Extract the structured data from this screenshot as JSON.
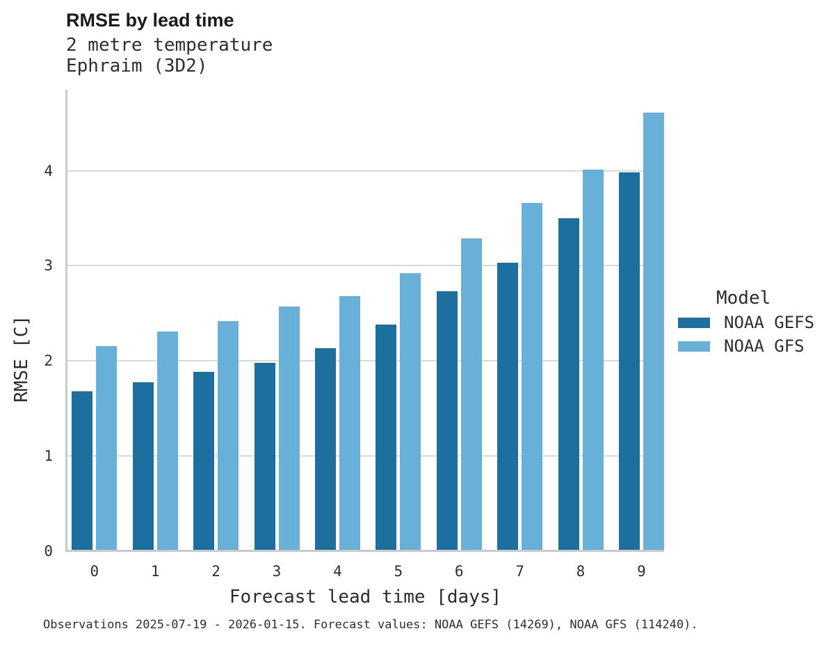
{
  "header": {
    "title": "RMSE by lead time",
    "subtitle_line1": "2 metre temperature",
    "subtitle_line2": "Ephraim (3D2)"
  },
  "legend": {
    "title": "Model",
    "entries": [
      {
        "label": "NOAA GEFS",
        "color": "#1d6fa0"
      },
      {
        "label": "NOAA GFS",
        "color": "#69b0d8"
      }
    ]
  },
  "footer": {
    "caption": "Observations 2025-07-19 - 2026-01-15. Forecast values: NOAA GEFS (14269), NOAA GFS (114240)."
  },
  "chart_data": {
    "type": "bar",
    "title": "RMSE by lead time",
    "subtitle": "2 metre temperature / Ephraim (3D2)",
    "xlabel": "Forecast lead time [days]",
    "ylabel": "RMSE [C]",
    "categories": [
      "0",
      "1",
      "2",
      "3",
      "4",
      "5",
      "6",
      "7",
      "8",
      "9"
    ],
    "series": [
      {
        "name": "NOAA GEFS",
        "color": "#1d6fa0",
        "values": [
          1.68,
          1.77,
          1.88,
          1.98,
          2.13,
          2.38,
          2.73,
          3.03,
          3.5,
          3.98
        ]
      },
      {
        "name": "NOAA GFS",
        "color": "#69b0d8",
        "values": [
          2.15,
          2.31,
          2.42,
          2.57,
          2.68,
          2.92,
          3.29,
          3.66,
          4.01,
          4.61
        ]
      }
    ],
    "yticks": [
      0,
      1,
      2,
      3,
      4
    ],
    "ylim": [
      0,
      4.85
    ],
    "grid": true,
    "grid_color": "#d9d9d9",
    "axis_color": "#c9c9c9",
    "legend_position": "right"
  }
}
